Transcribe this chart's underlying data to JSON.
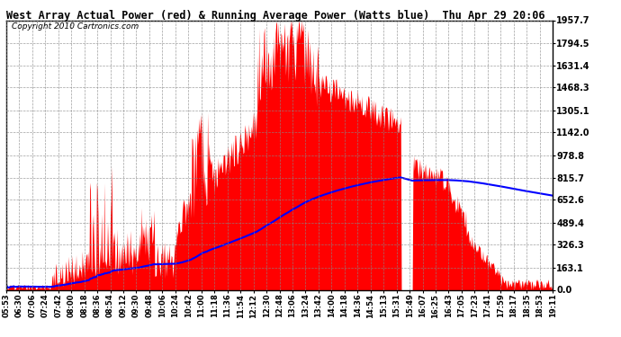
{
  "title": "West Array Actual Power (red) & Running Average Power (Watts blue)  Thu Apr 29 20:06",
  "copyright": "Copyright 2010 Cartronics.com",
  "yticks": [
    0.0,
    163.1,
    326.3,
    489.4,
    652.6,
    815.7,
    978.8,
    1142.0,
    1305.1,
    1468.3,
    1631.4,
    1794.5,
    1957.7
  ],
  "ymax": 1957.7,
  "ymin": 0.0,
  "bar_color": "#FF0000",
  "avg_color": "#0000FF",
  "bg_color": "#FFFFFF",
  "grid_color": "#888888",
  "xtick_labels": [
    "05:53",
    "06:30",
    "07:06",
    "07:24",
    "07:42",
    "08:00",
    "08:18",
    "08:36",
    "08:54",
    "09:12",
    "09:30",
    "09:48",
    "10:06",
    "10:24",
    "10:42",
    "11:00",
    "11:18",
    "11:36",
    "11:54",
    "12:12",
    "12:30",
    "12:48",
    "13:06",
    "13:24",
    "13:42",
    "14:00",
    "14:18",
    "14:36",
    "14:54",
    "15:13",
    "15:31",
    "15:49",
    "16:07",
    "16:25",
    "16:43",
    "17:05",
    "17:23",
    "17:41",
    "17:59",
    "18:17",
    "18:35",
    "18:53",
    "19:11"
  ]
}
